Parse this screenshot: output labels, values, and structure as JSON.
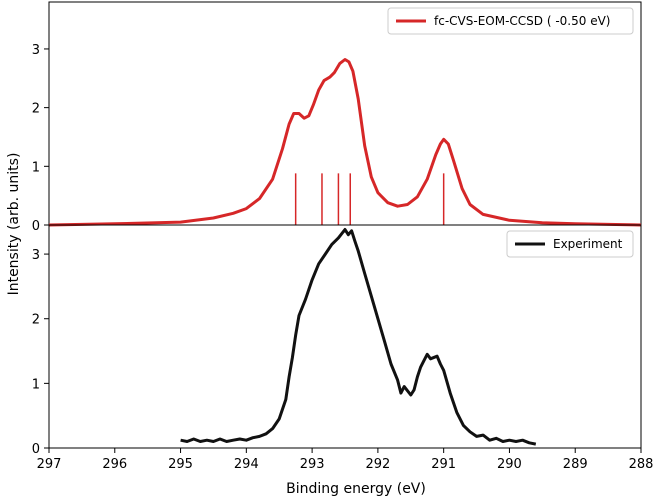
{
  "chart_data": {
    "type": "line",
    "xlabel": "Binding energy (eV)",
    "ylabel": "Intensity (arb. units)",
    "xlim": [
      297,
      288
    ],
    "x_reversed": true,
    "x_ticks": [
      297,
      296,
      295,
      294,
      293,
      292,
      291,
      290,
      289,
      288
    ],
    "grid": false,
    "panels": [
      {
        "ylim": [
          0,
          3.8
        ],
        "y_ticks": [
          0,
          1,
          2,
          3
        ],
        "legend": {
          "position": "top-right",
          "label": "fc-CVS-EOM-CCSD ( -0.50 eV)"
        },
        "series": [
          {
            "name": "fc-CVS-EOM-CCSD ( -0.50 eV)",
            "color": "#d62728",
            "style": "line",
            "points": [
              [
                297.0,
                0.0
              ],
              [
                296.0,
                0.02
              ],
              [
                295.0,
                0.05
              ],
              [
                294.5,
                0.12
              ],
              [
                294.2,
                0.2
              ],
              [
                294.0,
                0.28
              ],
              [
                293.8,
                0.45
              ],
              [
                293.6,
                0.78
              ],
              [
                293.45,
                1.3
              ],
              [
                293.35,
                1.72
              ],
              [
                293.28,
                1.9
              ],
              [
                293.2,
                1.9
              ],
              [
                293.12,
                1.82
              ],
              [
                293.05,
                1.86
              ],
              [
                292.98,
                2.05
              ],
              [
                292.9,
                2.3
              ],
              [
                292.82,
                2.46
              ],
              [
                292.73,
                2.52
              ],
              [
                292.66,
                2.6
              ],
              [
                292.58,
                2.75
              ],
              [
                292.5,
                2.82
              ],
              [
                292.44,
                2.78
              ],
              [
                292.38,
                2.62
              ],
              [
                292.3,
                2.15
              ],
              [
                292.2,
                1.35
              ],
              [
                292.1,
                0.82
              ],
              [
                292.0,
                0.55
              ],
              [
                291.85,
                0.38
              ],
              [
                291.7,
                0.32
              ],
              [
                291.55,
                0.35
              ],
              [
                291.4,
                0.48
              ],
              [
                291.25,
                0.78
              ],
              [
                291.12,
                1.2
              ],
              [
                291.05,
                1.38
              ],
              [
                291.0,
                1.46
              ],
              [
                290.93,
                1.38
              ],
              [
                290.85,
                1.1
              ],
              [
                290.72,
                0.62
              ],
              [
                290.6,
                0.35
              ],
              [
                290.4,
                0.18
              ],
              [
                290.0,
                0.08
              ],
              [
                289.5,
                0.04
              ],
              [
                289.0,
                0.02
              ],
              [
                288.0,
                0.0
              ]
            ]
          },
          {
            "name": "stick-transitions",
            "color": "#d62728",
            "style": "sticks",
            "sticks": [
              [
                293.25,
                0.88
              ],
              [
                292.85,
                0.88
              ],
              [
                292.6,
                0.88
              ],
              [
                292.42,
                0.88
              ],
              [
                291.0,
                0.88
              ]
            ]
          }
        ]
      },
      {
        "ylim": [
          0,
          3.45
        ],
        "y_ticks": [
          0,
          1,
          2,
          3
        ],
        "legend": {
          "position": "top-right",
          "label": "Experiment"
        },
        "series": [
          {
            "name": "Experiment",
            "color": "#111111",
            "style": "line",
            "points": [
              [
                295.0,
                0.12
              ],
              [
                294.9,
                0.1
              ],
              [
                294.8,
                0.14
              ],
              [
                294.7,
                0.1
              ],
              [
                294.6,
                0.12
              ],
              [
                294.5,
                0.1
              ],
              [
                294.4,
                0.14
              ],
              [
                294.3,
                0.1
              ],
              [
                294.2,
                0.12
              ],
              [
                294.1,
                0.14
              ],
              [
                294.0,
                0.12
              ],
              [
                293.9,
                0.16
              ],
              [
                293.8,
                0.18
              ],
              [
                293.7,
                0.22
              ],
              [
                293.6,
                0.3
              ],
              [
                293.5,
                0.45
              ],
              [
                293.4,
                0.75
              ],
              [
                293.35,
                1.1
              ],
              [
                293.3,
                1.4
              ],
              [
                293.25,
                1.75
              ],
              [
                293.2,
                2.05
              ],
              [
                293.1,
                2.3
              ],
              [
                293.0,
                2.6
              ],
              [
                292.9,
                2.85
              ],
              [
                292.8,
                3.0
              ],
              [
                292.7,
                3.15
              ],
              [
                292.6,
                3.25
              ],
              [
                292.5,
                3.38
              ],
              [
                292.45,
                3.3
              ],
              [
                292.4,
                3.36
              ],
              [
                292.35,
                3.2
              ],
              [
                292.3,
                3.05
              ],
              [
                292.2,
                2.7
              ],
              [
                292.1,
                2.35
              ],
              [
                292.0,
                2.0
              ],
              [
                291.9,
                1.65
              ],
              [
                291.8,
                1.3
              ],
              [
                291.7,
                1.05
              ],
              [
                291.65,
                0.85
              ],
              [
                291.6,
                0.95
              ],
              [
                291.5,
                0.82
              ],
              [
                291.45,
                0.9
              ],
              [
                291.4,
                1.1
              ],
              [
                291.35,
                1.25
              ],
              [
                291.3,
                1.35
              ],
              [
                291.25,
                1.45
              ],
              [
                291.2,
                1.38
              ],
              [
                291.1,
                1.42
              ],
              [
                291.05,
                1.3
              ],
              [
                291.0,
                1.2
              ],
              [
                290.9,
                0.85
              ],
              [
                290.8,
                0.55
              ],
              [
                290.7,
                0.35
              ],
              [
                290.6,
                0.25
              ],
              [
                290.5,
                0.18
              ],
              [
                290.4,
                0.2
              ],
              [
                290.3,
                0.12
              ],
              [
                290.2,
                0.15
              ],
              [
                290.1,
                0.1
              ],
              [
                290.0,
                0.12
              ],
              [
                289.9,
                0.1
              ],
              [
                289.8,
                0.12
              ],
              [
                289.7,
                0.08
              ],
              [
                289.6,
                0.06
              ]
            ]
          }
        ]
      }
    ]
  }
}
